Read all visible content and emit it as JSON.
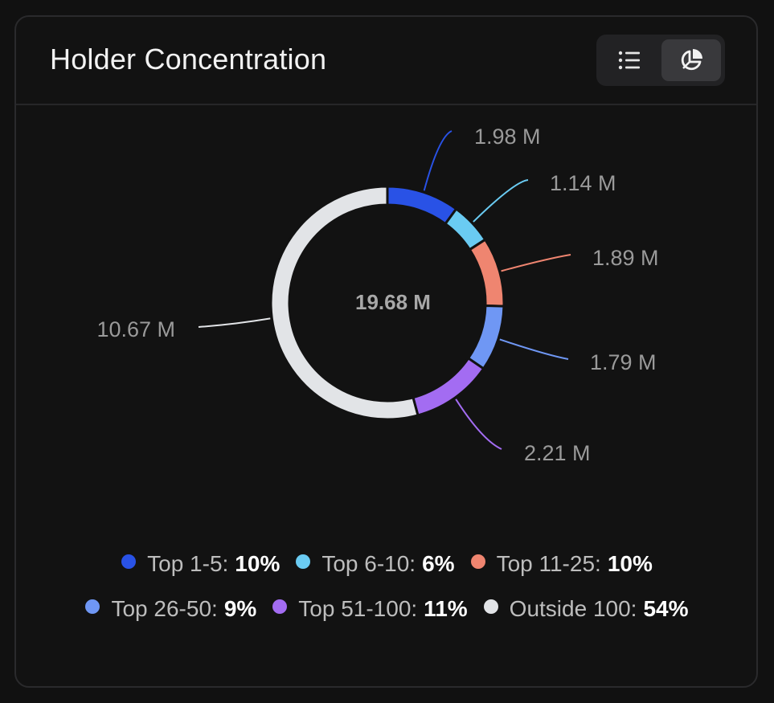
{
  "card": {
    "title": "Holder Concentration"
  },
  "toggle": {
    "list_icon": "list-icon",
    "pie_icon": "pie-chart-icon",
    "active": "pie"
  },
  "chart_data": {
    "type": "pie",
    "donut": true,
    "center_label": "19.68 M",
    "series": [
      {
        "name": "Top 1-5",
        "value": 1.98,
        "label": "1.98 M",
        "percent_label": "10%",
        "color": "#2952e6"
      },
      {
        "name": "Top 6-10",
        "value": 1.14,
        "label": "1.14 M",
        "percent_label": "6%",
        "color": "#6acbf2"
      },
      {
        "name": "Top 11-25",
        "value": 1.89,
        "label": "1.89 M",
        "percent_label": "10%",
        "color": "#ef8570"
      },
      {
        "name": "Top 26-50",
        "value": 1.79,
        "label": "1.79 M",
        "percent_label": "9%",
        "color": "#6f97f4"
      },
      {
        "name": "Top 51-100",
        "value": 2.21,
        "label": "2.21 M",
        "percent_label": "11%",
        "color": "#a36cf2"
      },
      {
        "name": "Outside 100",
        "value": 10.67,
        "label": "10.67 M",
        "percent_label": "54%",
        "color": "#e2e4e7"
      }
    ],
    "legend_placement": "bottom"
  }
}
